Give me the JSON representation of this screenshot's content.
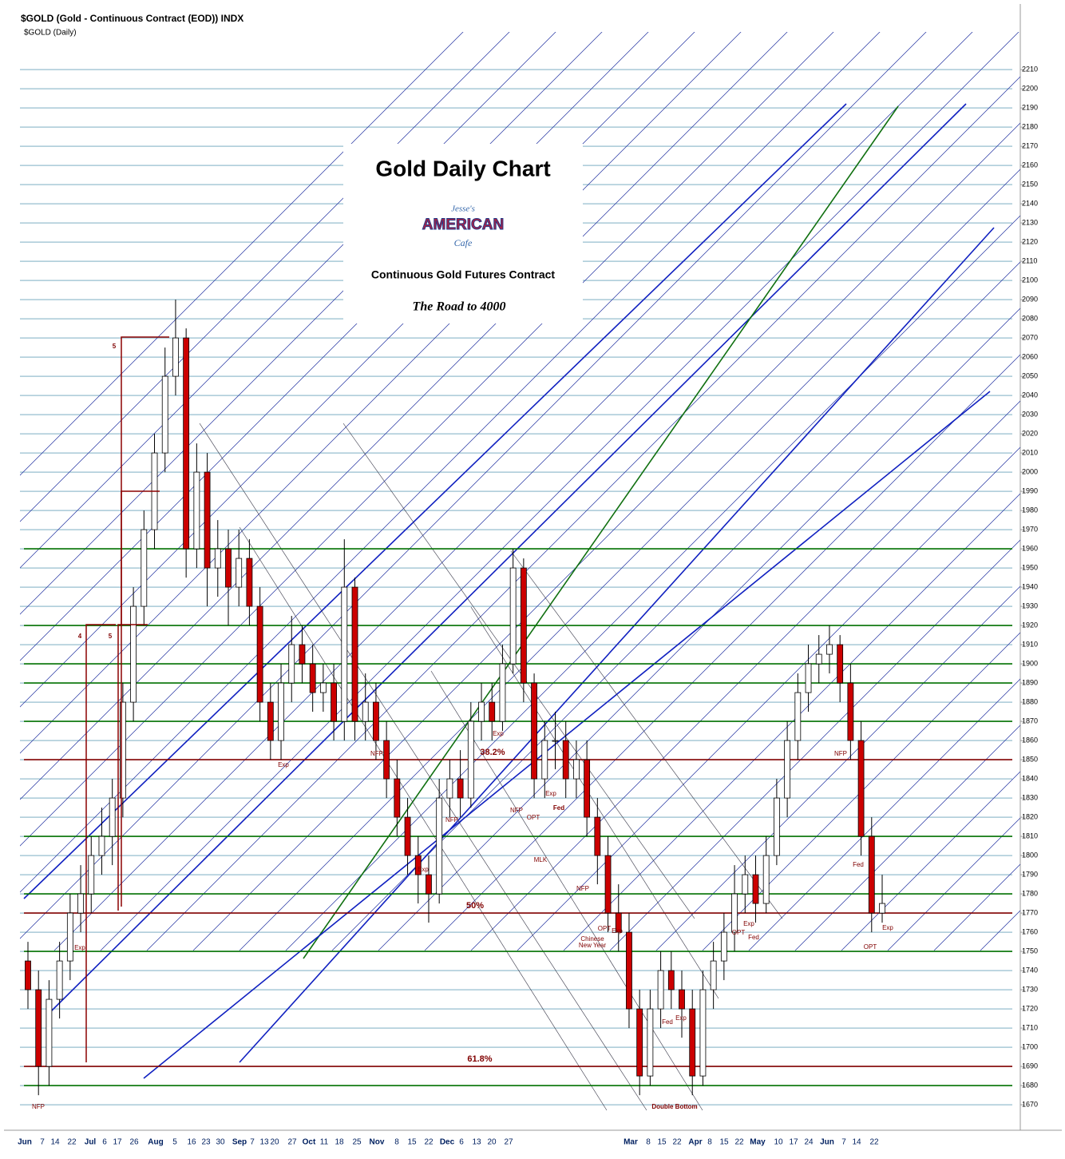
{
  "chart_data": {
    "type": "candlestick",
    "header": "$GOLD (Gold - Continuous Contract (EOD)) INDX",
    "subheader": "$GOLD (Daily)",
    "title": "Gold Daily Chart",
    "logo": [
      "Jesse's",
      "AMERICAN",
      "Cafe"
    ],
    "subtitle": "Continuous Gold Futures Contract",
    "tagline": "The Road to 4000",
    "ylim": [
      1656.7,
      2244.2
    ],
    "yticks": [
      1670,
      1680,
      1690,
      1700,
      1710,
      1720,
      1730,
      1740,
      1750,
      1760,
      1770,
      1780,
      1790,
      1800,
      1810,
      1820,
      1830,
      1840,
      1850,
      1860,
      1870,
      1880,
      1890,
      1900,
      1910,
      1920,
      1930,
      1940,
      1950,
      1960,
      1970,
      1980,
      1990,
      2000,
      2010,
      2020,
      2030,
      2040,
      2050,
      2060,
      2070,
      2080,
      2090,
      2100,
      2110,
      2120,
      2130,
      2140,
      2150,
      2160,
      2170,
      2180,
      2190,
      2200,
      2210
    ],
    "grid": true,
    "grid_color": "#2f7f9f",
    "up_color": "#ffffff",
    "down_color": "#cc0000",
    "x_labels": [
      "Jun",
      "7",
      "14",
      "22",
      "Jul",
      "6",
      "17",
      "26",
      "Aug",
      "5",
      "16",
      "23",
      "30",
      "Sep",
      "7",
      "13",
      "20",
      "27",
      "Oct",
      "11",
      "18",
      "25",
      "Nov",
      "8",
      "15",
      "22",
      "Dec",
      "6",
      "13",
      "20",
      "27",
      "Mar",
      "8",
      "15",
      "22",
      "Apr",
      "8",
      "15",
      "22",
      "May",
      "10",
      "17",
      "24",
      "Jun",
      "7",
      "14",
      "22"
    ],
    "open": [
      1745,
      1730,
      1690,
      1725,
      1745,
      1770,
      1780,
      1800,
      1810,
      1830,
      1880,
      1930,
      1970,
      2010,
      2050,
      2070,
      1960,
      2000,
      1950,
      1960,
      1940,
      1955,
      1930,
      1880,
      1860,
      1890,
      1910,
      1900,
      1885,
      1890,
      1870,
      1940,
      1870,
      1880,
      1860,
      1840,
      1820,
      1800,
      1790,
      1780,
      1830,
      1840,
      1830,
      1870,
      1880,
      1870,
      1900,
      1950,
      1890,
      1840,
      1860,
      1860,
      1840,
      1850,
      1820,
      1800,
      1770,
      1760,
      1720,
      1685,
      1720,
      1740,
      1730,
      1720,
      1685,
      1730,
      1745,
      1760,
      1780,
      1790,
      1775,
      1800,
      1830,
      1860,
      1885,
      1900,
      1905,
      1910,
      1890,
      1860,
      1810,
      1770
    ],
    "high": [
      1755,
      1740,
      1735,
      1755,
      1780,
      1795,
      1810,
      1825,
      1840,
      1890,
      1940,
      1980,
      2020,
      2065,
      2090,
      2075,
      2015,
      2010,
      1975,
      1970,
      1970,
      1965,
      1940,
      1890,
      1900,
      1925,
      1920,
      1910,
      1900,
      1900,
      1965,
      1945,
      1895,
      1890,
      1870,
      1850,
      1830,
      1810,
      1800,
      1840,
      1850,
      1855,
      1880,
      1890,
      1890,
      1910,
      1960,
      1955,
      1895,
      1870,
      1875,
      1870,
      1860,
      1860,
      1830,
      1810,
      1785,
      1770,
      1730,
      1730,
      1750,
      1750,
      1740,
      1730,
      1740,
      1755,
      1770,
      1795,
      1800,
      1800,
      1810,
      1840,
      1870,
      1895,
      1910,
      1915,
      1920,
      1915,
      1900,
      1870,
      1820,
      1790
    ],
    "low": [
      1720,
      1675,
      1680,
      1715,
      1735,
      1760,
      1770,
      1790,
      1795,
      1820,
      1870,
      1920,
      1960,
      2000,
      2040,
      1945,
      1950,
      1930,
      1935,
      1920,
      1930,
      1920,
      1870,
      1850,
      1850,
      1880,
      1890,
      1875,
      1875,
      1860,
      1860,
      1860,
      1860,
      1850,
      1830,
      1810,
      1790,
      1775,
      1765,
      1775,
      1820,
      1820,
      1825,
      1860,
      1860,
      1865,
      1895,
      1880,
      1830,
      1830,
      1845,
      1830,
      1830,
      1810,
      1785,
      1760,
      1750,
      1710,
      1675,
      1680,
      1710,
      1720,
      1705,
      1675,
      1680,
      1720,
      1735,
      1750,
      1770,
      1765,
      1770,
      1795,
      1820,
      1850,
      1875,
      1890,
      1895,
      1880,
      1850,
      1800,
      1760,
      1765
    ],
    "close": [
      1730,
      1690,
      1725,
      1745,
      1770,
      1780,
      1800,
      1810,
      1830,
      1880,
      1930,
      1970,
      2010,
      2050,
      2070,
      1960,
      2000,
      1950,
      1960,
      1940,
      1955,
      1930,
      1880,
      1860,
      1890,
      1910,
      1900,
      1885,
      1890,
      1870,
      1940,
      1870,
      1880,
      1860,
      1840,
      1820,
      1800,
      1790,
      1780,
      1830,
      1840,
      1830,
      1870,
      1880,
      1870,
      1900,
      1950,
      1890,
      1840,
      1860,
      1860,
      1840,
      1850,
      1820,
      1800,
      1770,
      1760,
      1720,
      1685,
      1720,
      1740,
      1730,
      1720,
      1685,
      1730,
      1745,
      1760,
      1780,
      1790,
      1775,
      1800,
      1830,
      1860,
      1885,
      1900,
      1905,
      1910,
      1890,
      1860,
      1810,
      1770,
      1775
    ],
    "levels": [
      {
        "value": 1680,
        "color": "#007000"
      },
      {
        "value": 1690,
        "color": "#800000",
        "label": "61.8%"
      },
      {
        "value": 1750,
        "color": "#007000"
      },
      {
        "value": 1770,
        "color": "#800000",
        "label": "50%"
      },
      {
        "value": 1780,
        "color": "#007000"
      },
      {
        "value": 1810,
        "color": "#007000"
      },
      {
        "value": 1850,
        "color": "#800000",
        "label": "38.2%"
      },
      {
        "value": 1870,
        "color": "#007000"
      },
      {
        "value": 1890,
        "color": "#007000"
      },
      {
        "value": 1900,
        "color": "#007000"
      },
      {
        "value": 1920,
        "color": "#007000"
      },
      {
        "value": 1960,
        "color": "#007000"
      }
    ],
    "annotations": [
      "NFP",
      "Exp",
      "Exp",
      "NFP",
      "Exp",
      "NFP",
      "Exp",
      "NFP",
      "OPT",
      "Exp",
      "Fed",
      "MLK",
      "NFP",
      "OPT",
      "Exp",
      "Chinese",
      "New Year",
      "Fed",
      "Exp",
      "OPT",
      "Exp",
      "Fed",
      "NFP",
      "Fed",
      "OPT",
      "Exp",
      "Double Bottom",
      "4",
      "5",
      "5"
    ]
  }
}
